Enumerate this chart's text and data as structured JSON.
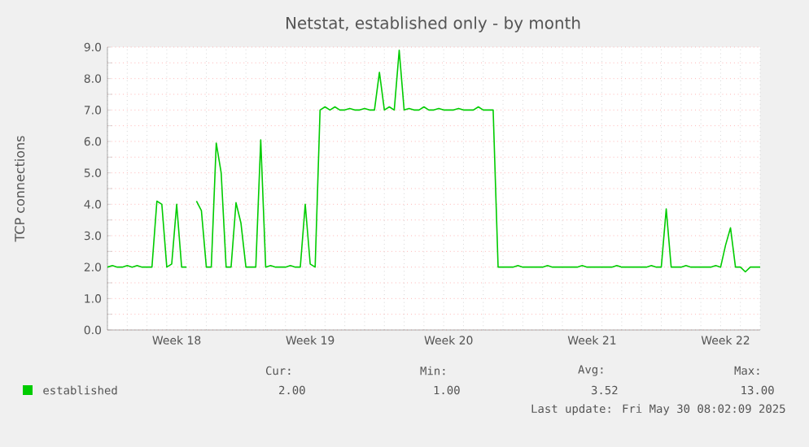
{
  "chart_data": {
    "type": "line",
    "title": "Netstat, established only - by month",
    "ylabel": "TCP connections",
    "categories": [
      null,
      null,
      null,
      null,
      null,
      null,
      null,
      null,
      null,
      null,
      null,
      null,
      null,
      null,
      "Week 18",
      null,
      null,
      null,
      null,
      null,
      null,
      null,
      null,
      null,
      null,
      null,
      null,
      null,
      null,
      null,
      null,
      null,
      null,
      null,
      null,
      null,
      null,
      null,
      null,
      null,
      null,
      "Week 19",
      null,
      null,
      null,
      null,
      null,
      null,
      null,
      null,
      null,
      null,
      null,
      null,
      null,
      null,
      null,
      null,
      null,
      null,
      null,
      null,
      null,
      null,
      null,
      null,
      null,
      null,
      null,
      "Week 20",
      null,
      null,
      null,
      null,
      null,
      null,
      null,
      null,
      null,
      null,
      null,
      null,
      null,
      null,
      null,
      null,
      null,
      null,
      null,
      null,
      null,
      null,
      null,
      null,
      null,
      null,
      null,
      null,
      "Week 21",
      null,
      null,
      null,
      null,
      null,
      null,
      null,
      null,
      null,
      null,
      null,
      null,
      null,
      null,
      null,
      null,
      null,
      null,
      null,
      null,
      null,
      null,
      null,
      null,
      null,
      null,
      "Week 22",
      null,
      null,
      null,
      null,
      null,
      null,
      null
    ],
    "ylim": [
      0,
      9
    ],
    "yticks": [
      {
        "value": 0,
        "label": "0.0"
      },
      {
        "value": 1,
        "label": "1.0"
      },
      {
        "value": 2,
        "label": "2.0"
      },
      {
        "value": 3,
        "label": "3.0"
      },
      {
        "value": 4,
        "label": "4.0"
      },
      {
        "value": 5,
        "label": "5.0"
      },
      {
        "value": 6,
        "label": "6.0"
      },
      {
        "value": 7,
        "label": "7.0"
      },
      {
        "value": 8,
        "label": "8.0"
      },
      {
        "value": 9,
        "label": "9.0"
      }
    ],
    "grid": true,
    "legend": "bottom left",
    "series": [
      {
        "name": "established",
        "color": "#00cc00",
        "values": [
          2.0,
          2.05,
          2.0,
          2.0,
          2.05,
          2.0,
          2.05,
          2.0,
          2.0,
          2.0,
          4.1,
          4.0,
          2.0,
          2.1,
          4.0,
          2.0,
          2.0,
          null,
          4.1,
          3.8,
          2.0,
          2.0,
          5.95,
          5.0,
          2.0,
          2.0,
          4.05,
          3.4,
          2.0,
          2.0,
          2.0,
          6.05,
          2.0,
          2.05,
          2.0,
          2.0,
          2.0,
          2.05,
          2.0,
          2.0,
          4.0,
          2.1,
          2.0,
          7.0,
          7.1,
          7.0,
          7.1,
          7.0,
          7.0,
          7.05,
          7.0,
          7.0,
          7.05,
          7.0,
          7.0,
          8.2,
          7.0,
          7.1,
          7.0,
          8.9,
          7.0,
          7.05,
          7.0,
          7.0,
          7.1,
          7.0,
          7.0,
          7.05,
          7.0,
          7.0,
          7.0,
          7.05,
          7.0,
          7.0,
          7.0,
          7.1,
          7.0,
          7.0,
          7.0,
          2.0,
          2.0,
          2.0,
          2.0,
          2.05,
          2.0,
          2.0,
          2.0,
          2.0,
          2.0,
          2.05,
          2.0,
          2.0,
          2.0,
          2.0,
          2.0,
          2.0,
          2.05,
          2.0,
          2.0,
          2.0,
          2.0,
          2.0,
          2.0,
          2.05,
          2.0,
          2.0,
          2.0,
          2.0,
          2.0,
          2.0,
          2.05,
          2.0,
          2.0,
          3.85,
          2.0,
          2.0,
          2.0,
          2.05,
          2.0,
          2.0,
          2.0,
          2.0,
          2.0,
          2.05,
          2.0,
          2.7,
          3.25,
          2.0,
          2.0,
          1.85,
          2.0,
          2.0,
          2.0
        ]
      }
    ],
    "annotations": [
      "Cur:",
      "Min:",
      "Avg:",
      "Max:",
      "2.00",
      "1.00",
      "3.52",
      "13.00",
      "Last update: Fri May 30 08:02:09 2025"
    ]
  }
}
